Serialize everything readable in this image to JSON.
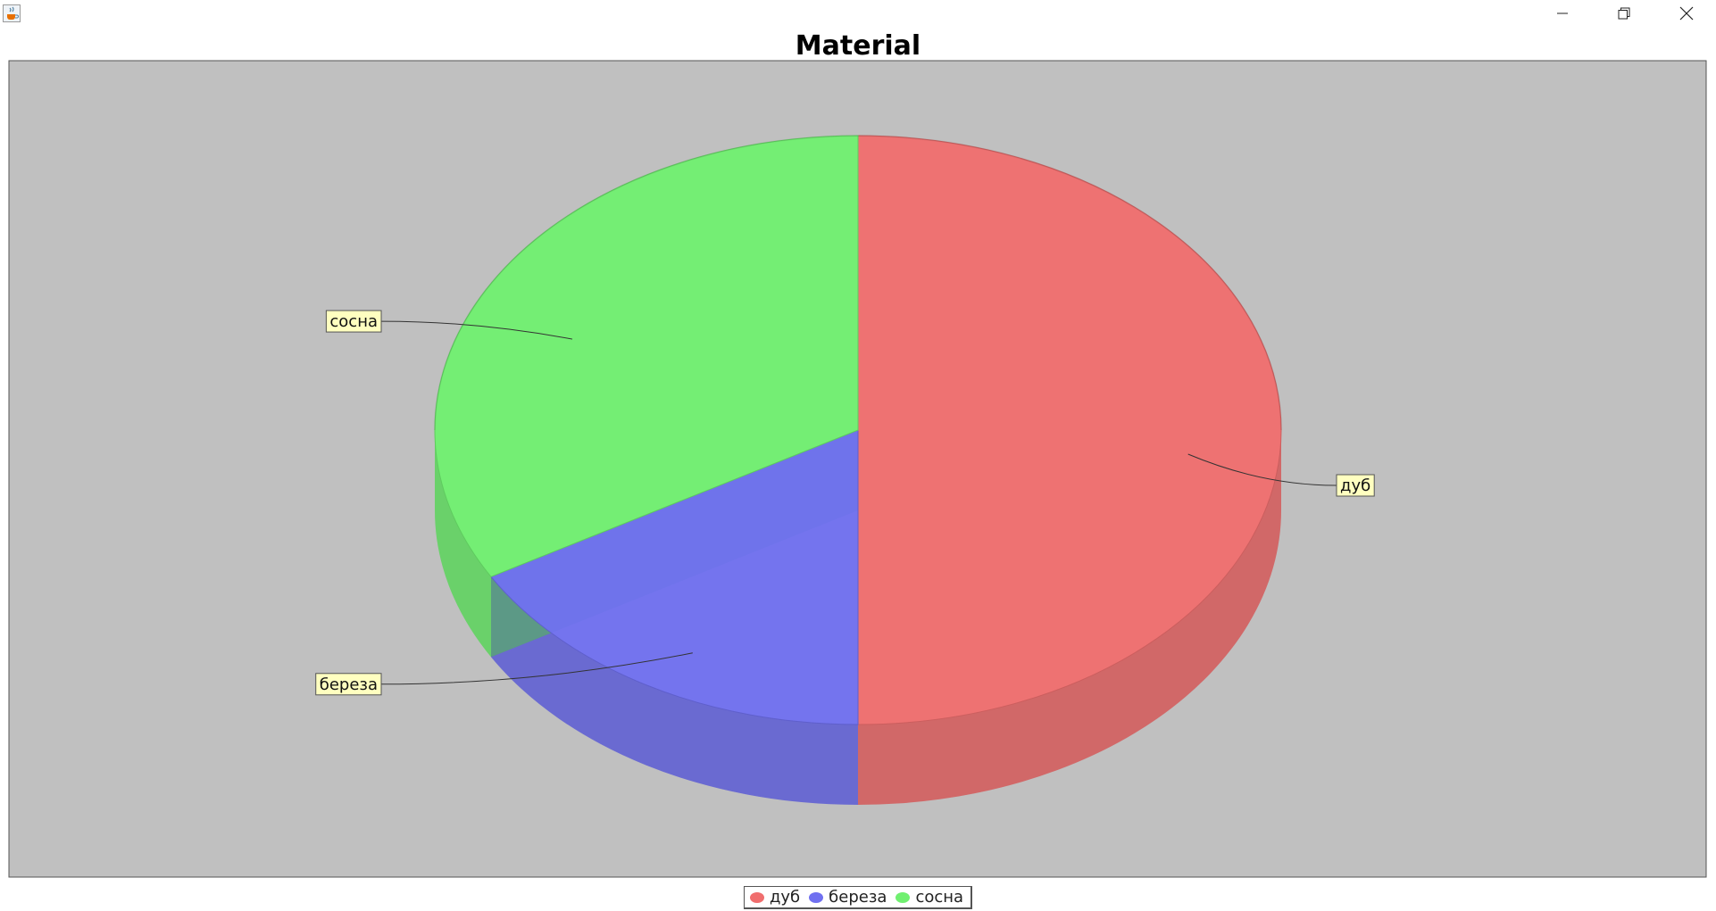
{
  "window": {
    "minimize_icon": "minimize-icon",
    "restore_icon": "restore-icon",
    "close_icon": "close-icon",
    "app_icon": "java-cup-icon"
  },
  "chart_data": {
    "type": "pie",
    "style": "3d",
    "title": "Material",
    "categories": [
      "дуб",
      "береза",
      "сосна"
    ],
    "values": [
      50,
      16.7,
      33.3
    ],
    "colors": [
      "#F06E6E",
      "#7070F0",
      "#70F070"
    ],
    "plot_background": "#C0C0C0",
    "legend_position": "bottom-center",
    "labels": [
      {
        "text": "дуб"
      },
      {
        "text": "береза"
      },
      {
        "text": "сосна"
      }
    ]
  }
}
